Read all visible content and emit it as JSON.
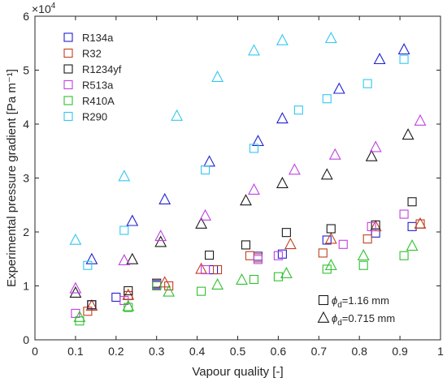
{
  "chart_data": {
    "type": "scatter",
    "xlabel": "Vapour quality [-]",
    "ylabel": "Experimental pressure gradient [Pa m⁻¹]",
    "xlim": [
      0,
      1
    ],
    "ylim": [
      0,
      60000
    ],
    "x_ticks": [
      "0",
      "0.1",
      "0.2",
      "0.3",
      "0.4",
      "0.5",
      "0.6",
      "0.7",
      "0.8",
      "0.9",
      "1"
    ],
    "y_ticks": [
      "0",
      "1",
      "2",
      "3",
      "4",
      "5",
      "6"
    ],
    "y_exponent": "×10",
    "y_exponent_power": "4",
    "grid": false,
    "legend_position": "top-left",
    "marker_legend": [
      {
        "marker": "square",
        "label_prefix": "ϕ",
        "label_sub": "d",
        "label_suffix": "=1.16 mm"
      },
      {
        "marker": "triangle",
        "label_prefix": "ϕ",
        "label_sub": "d",
        "label_suffix": "=0.715 mm"
      }
    ],
    "series": [
      {
        "name": "R134a",
        "color": "#2020d0",
        "square": [
          [
            0.14,
            6500
          ],
          [
            0.2,
            7900
          ],
          [
            0.3,
            10200
          ],
          [
            0.44,
            13000
          ],
          [
            0.55,
            15500
          ],
          [
            0.61,
            15900
          ],
          [
            0.72,
            18500
          ],
          [
            0.84,
            19800
          ],
          [
            0.93,
            21000
          ]
        ],
        "triangle": [
          [
            0.14,
            14900
          ],
          [
            0.24,
            22000
          ],
          [
            0.32,
            26000
          ],
          [
            0.43,
            33000
          ],
          [
            0.55,
            36800
          ],
          [
            0.61,
            41000
          ],
          [
            0.75,
            46500
          ],
          [
            0.85,
            52000
          ],
          [
            0.91,
            53800
          ]
        ]
      },
      {
        "name": "R32",
        "color": "#c04020",
        "square": [
          [
            0.13,
            5300
          ],
          [
            0.23,
            8200
          ],
          [
            0.33,
            10000
          ],
          [
            0.45,
            13000
          ],
          [
            0.53,
            15600
          ],
          [
            0.55,
            15200
          ],
          [
            0.71,
            16100
          ],
          [
            0.82,
            18700
          ],
          [
            0.95,
            21500
          ]
        ],
        "triangle": [
          [
            0.14,
            6300
          ],
          [
            0.23,
            8300
          ],
          [
            0.32,
            10600
          ],
          [
            0.41,
            13100
          ],
          [
            0.63,
            17700
          ],
          [
            0.73,
            18700
          ],
          [
            0.84,
            21000
          ],
          [
            0.95,
            21500
          ]
        ]
      },
      {
        "name": "R1234yf",
        "color": "#1a1a1a",
        "square": [
          [
            0.14,
            6500
          ],
          [
            0.23,
            9100
          ],
          [
            0.3,
            10500
          ],
          [
            0.43,
            15700
          ],
          [
            0.52,
            17600
          ],
          [
            0.62,
            19900
          ],
          [
            0.73,
            20600
          ],
          [
            0.84,
            21300
          ],
          [
            0.93,
            25600
          ]
        ],
        "triangle": [
          [
            0.1,
            8700
          ],
          [
            0.24,
            14900
          ],
          [
            0.31,
            18100
          ],
          [
            0.41,
            21500
          ],
          [
            0.52,
            25800
          ],
          [
            0.61,
            29000
          ],
          [
            0.72,
            30600
          ],
          [
            0.83,
            34000
          ],
          [
            0.92,
            38000
          ]
        ]
      },
      {
        "name": "R513a",
        "color": "#c040e0",
        "square": [
          [
            0.1,
            4900
          ],
          [
            0.22,
            7300
          ],
          [
            0.3,
            10300
          ],
          [
            0.42,
            13000
          ],
          [
            0.55,
            14900
          ],
          [
            0.6,
            15600
          ],
          [
            0.76,
            17700
          ],
          [
            0.83,
            21000
          ],
          [
            0.91,
            23300
          ]
        ],
        "triangle": [
          [
            0.1,
            9500
          ],
          [
            0.22,
            14700
          ],
          [
            0.31,
            19200
          ],
          [
            0.42,
            23000
          ],
          [
            0.54,
            27800
          ],
          [
            0.64,
            31500
          ],
          [
            0.74,
            34300
          ],
          [
            0.84,
            35700
          ],
          [
            0.95,
            40600
          ]
        ]
      },
      {
        "name": "R410A",
        "color": "#30c030",
        "square": [
          [
            0.11,
            3500
          ],
          [
            0.23,
            6000
          ],
          [
            0.3,
            10000
          ],
          [
            0.41,
            9000
          ],
          [
            0.54,
            11200
          ],
          [
            0.6,
            11700
          ],
          [
            0.72,
            13100
          ],
          [
            0.81,
            13800
          ],
          [
            0.91,
            15600
          ]
        ],
        "triangle": [
          [
            0.11,
            4200
          ],
          [
            0.23,
            6200
          ],
          [
            0.33,
            8900
          ],
          [
            0.45,
            10200
          ],
          [
            0.51,
            11100
          ],
          [
            0.62,
            12300
          ],
          [
            0.73,
            13800
          ],
          [
            0.81,
            15600
          ],
          [
            0.93,
            17400
          ]
        ]
      },
      {
        "name": "R290",
        "color": "#30c8f0",
        "square": [
          [
            0.13,
            13800
          ],
          [
            0.22,
            20300
          ],
          [
            0.42,
            31500
          ],
          [
            0.54,
            35500
          ],
          [
            0.65,
            42600
          ],
          [
            0.72,
            44700
          ],
          [
            0.82,
            47500
          ],
          [
            0.91,
            52000
          ]
        ],
        "triangle": [
          [
            0.1,
            18500
          ],
          [
            0.22,
            30300
          ],
          [
            0.35,
            41500
          ],
          [
            0.45,
            48700
          ],
          [
            0.54,
            53600
          ],
          [
            0.61,
            55500
          ],
          [
            0.73,
            55900
          ]
        ]
      }
    ]
  }
}
